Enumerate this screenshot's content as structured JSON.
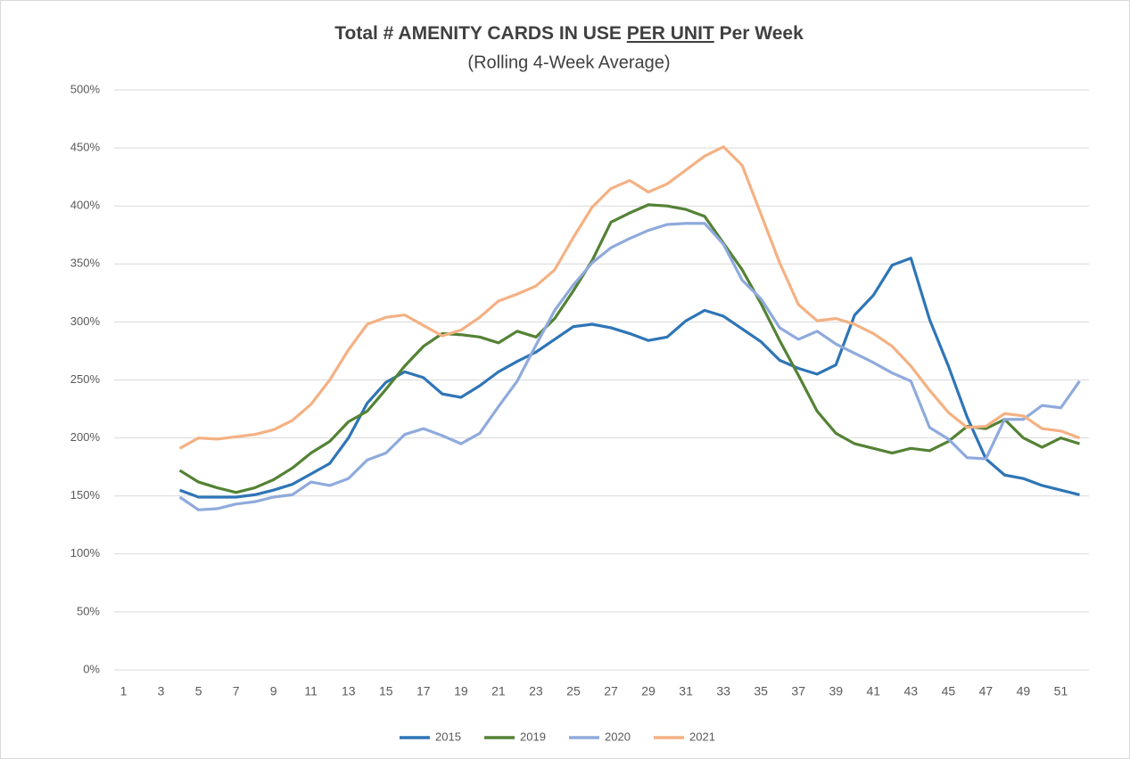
{
  "chart_data": {
    "type": "line",
    "title": {
      "before": "Total # AMENITY CARDS IN USE",
      "underlined": "PER UNIT",
      "after": "Per Week"
    },
    "subtitle": "(Rolling 4-Week Average)",
    "categories": [
      1,
      null,
      3,
      null,
      5,
      null,
      7,
      null,
      9,
      null,
      11,
      null,
      13,
      null,
      15,
      null,
      17,
      null,
      19,
      null,
      21,
      null,
      23,
      null,
      25,
      null,
      27,
      null,
      29,
      null,
      31,
      null,
      33,
      null,
      35,
      null,
      37,
      null,
      39,
      null,
      41,
      null,
      43,
      null,
      45,
      null,
      47,
      null,
      49,
      null,
      51,
      null
    ],
    "ylim": [
      0,
      500
    ],
    "yticks": [
      {
        "value": 0,
        "label": "0%"
      },
      {
        "value": 50,
        "label": "50%"
      },
      {
        "value": 100,
        "label": "100%"
      },
      {
        "value": 150,
        "label": "150%"
      },
      {
        "value": 200,
        "label": "200%"
      },
      {
        "value": 250,
        "label": "250%"
      },
      {
        "value": 300,
        "label": "300%"
      },
      {
        "value": 350,
        "label": "350%"
      },
      {
        "value": 400,
        "label": "400%"
      },
      {
        "value": 450,
        "label": "450%"
      },
      {
        "value": 500,
        "label": "500%"
      }
    ],
    "grid": true,
    "legend": "bottom",
    "series": [
      {
        "name": "2015",
        "color": "#2e75b6",
        "values": [
          null,
          null,
          null,
          155,
          149,
          149,
          149,
          151,
          155,
          160,
          169,
          178,
          200,
          230,
          248,
          257,
          252,
          238,
          235,
          245,
          257,
          266,
          274,
          285,
          296,
          298,
          295,
          290,
          284,
          287,
          301,
          310,
          305,
          294,
          283,
          267,
          260,
          255,
          263,
          306,
          323,
          349,
          355,
          302,
          262,
          218,
          182,
          168,
          165,
          159,
          155,
          151
        ]
      },
      {
        "name": "2019",
        "color": "#548235",
        "values": [
          null,
          null,
          null,
          172,
          162,
          157,
          153,
          157,
          164,
          174,
          187,
          197,
          214,
          223,
          242,
          262,
          279,
          290,
          289,
          287,
          282,
          292,
          287,
          303,
          327,
          353,
          386,
          394,
          401,
          400,
          397,
          391,
          368,
          345,
          316,
          284,
          254,
          223,
          204,
          195,
          191,
          187,
          191,
          189,
          197,
          210,
          208,
          216,
          200,
          192,
          200,
          195
        ]
      },
      {
        "name": "2020",
        "color": "#8faadc",
        "values": [
          null,
          null,
          null,
          149,
          138,
          139,
          143,
          145,
          149,
          151,
          162,
          159,
          165,
          181,
          187,
          203,
          208,
          202,
          195,
          204,
          227,
          249,
          280,
          310,
          332,
          351,
          364,
          372,
          379,
          384,
          385,
          385,
          367,
          336,
          320,
          295,
          285,
          292,
          281,
          273,
          265,
          256,
          249,
          209,
          199,
          183,
          182,
          216,
          216,
          228,
          226,
          249
        ]
      },
      {
        "name": "2021",
        "color": "#f4b183",
        "values": [
          null,
          null,
          null,
          191,
          200,
          199,
          201,
          203,
          207,
          215,
          229,
          250,
          276,
          298,
          304,
          306,
          297,
          288,
          293,
          304,
          318,
          324,
          331,
          345,
          373,
          399,
          415,
          422,
          412,
          419,
          431,
          443,
          451,
          435,
          393,
          351,
          315,
          301,
          303,
          298,
          290,
          279,
          262,
          241,
          222,
          209,
          210,
          221,
          219,
          208,
          206,
          200
        ]
      }
    ]
  }
}
